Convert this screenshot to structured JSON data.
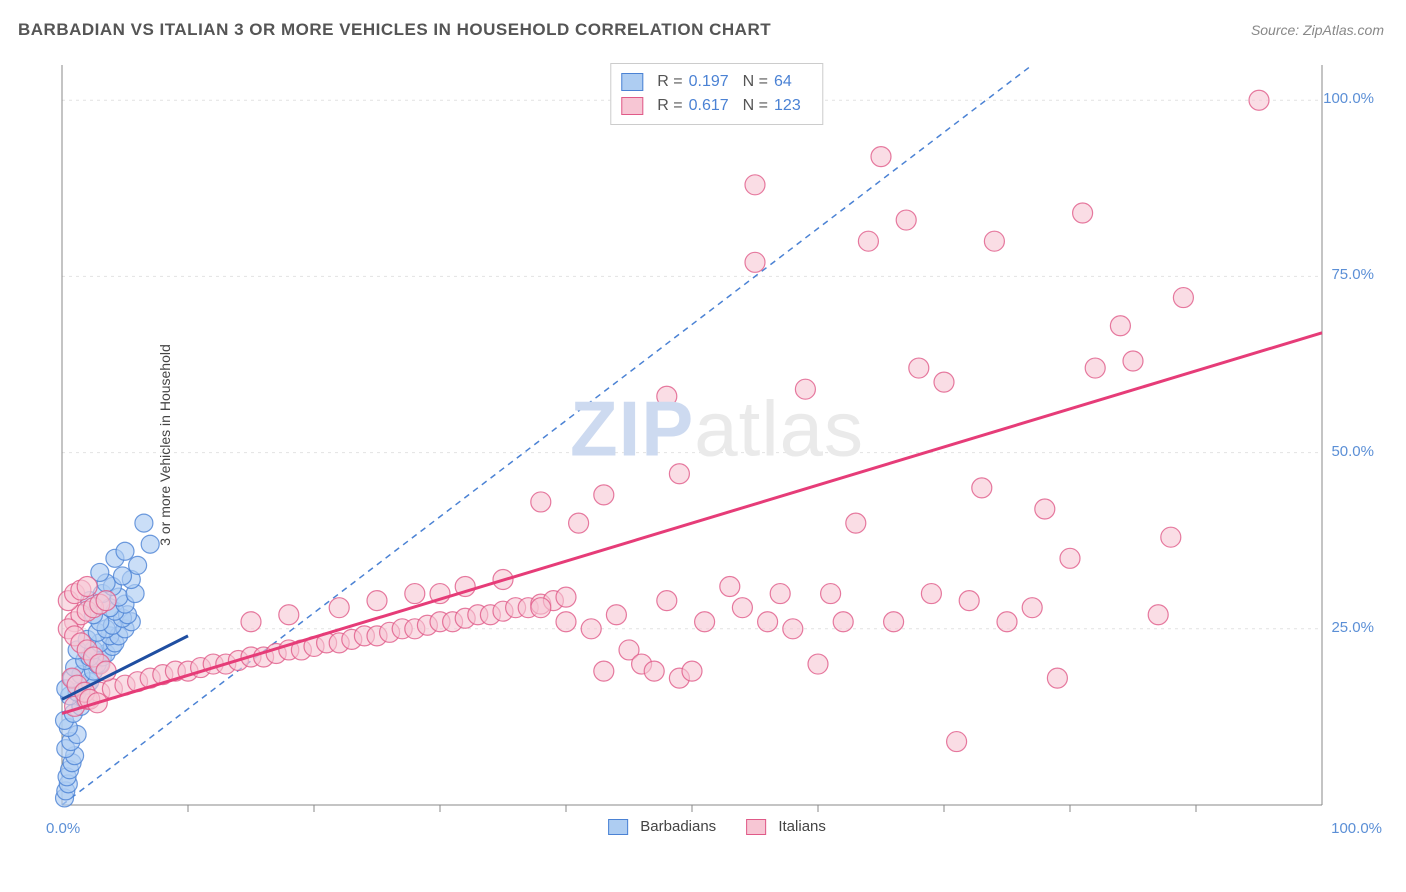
{
  "title": "BARBADIAN VS ITALIAN 3 OR MORE VEHICLES IN HOUSEHOLD CORRELATION CHART",
  "source": "Source: ZipAtlas.com",
  "watermark_zip": "ZIP",
  "watermark_atlas": "atlas",
  "y_axis_label": "3 or more Vehicles in Household",
  "chart": {
    "type": "scatter",
    "xlim": [
      0,
      100
    ],
    "ylim": [
      0,
      105
    ],
    "y_ticks": [
      25,
      50,
      75,
      100
    ],
    "y_tick_labels": [
      "25.0%",
      "50.0%",
      "75.0%",
      "100.0%"
    ],
    "x_tick_labels": {
      "left": "0.0%",
      "right": "100.0%"
    },
    "x_minor_ticks": [
      10,
      20,
      30,
      40,
      50,
      60,
      70,
      80,
      90
    ],
    "grid_color": "#e2e2e2",
    "axis_color": "#888",
    "background_color": "#ffffff",
    "reference_line": {
      "color": "#4b82d4",
      "dash": "6,5",
      "x1": 0,
      "y1": 0,
      "x2": 77,
      "y2": 105
    },
    "series": [
      {
        "name": "Barbadians",
        "marker_color_fill": "#aecdf2",
        "marker_color_stroke": "#4b82d4",
        "marker_radius": 9,
        "marker_opacity": 0.65,
        "trend": {
          "color": "#1f4ea1",
          "width": 3,
          "x1": 0,
          "y1": 15,
          "x2": 10,
          "y2": 24
        },
        "legend_r_label": "R = ",
        "legend_r_value": "0.197",
        "legend_n_label": "N = ",
        "legend_n_value": " 64",
        "points": [
          [
            0.2,
            1
          ],
          [
            0.3,
            2
          ],
          [
            0.5,
            3
          ],
          [
            0.4,
            4
          ],
          [
            0.6,
            5
          ],
          [
            0.8,
            6
          ],
          [
            1,
            7
          ],
          [
            0.3,
            8
          ],
          [
            0.7,
            9
          ],
          [
            1.2,
            10
          ],
          [
            0.5,
            11
          ],
          [
            0.2,
            12
          ],
          [
            0.9,
            13
          ],
          [
            1.5,
            14
          ],
          [
            1.8,
            15
          ],
          [
            0.6,
            15.5
          ],
          [
            1.2,
            16
          ],
          [
            0.3,
            16.5
          ],
          [
            2,
            17
          ],
          [
            2.2,
            17.5
          ],
          [
            0.8,
            18
          ],
          [
            1.5,
            18.5
          ],
          [
            2.5,
            19
          ],
          [
            1,
            19.5
          ],
          [
            3,
            20
          ],
          [
            2.8,
            20
          ],
          [
            1.8,
            20.5
          ],
          [
            3.2,
            21
          ],
          [
            2.2,
            21
          ],
          [
            3.5,
            21.5
          ],
          [
            1.2,
            22
          ],
          [
            2.5,
            22
          ],
          [
            4,
            22.5
          ],
          [
            3,
            23
          ],
          [
            4.2,
            23
          ],
          [
            2,
            23.5
          ],
          [
            3.8,
            24
          ],
          [
            4.5,
            24
          ],
          [
            2.8,
            24.5
          ],
          [
            5,
            25
          ],
          [
            3.5,
            25
          ],
          [
            4,
            25.5
          ],
          [
            5.5,
            26
          ],
          [
            3,
            26
          ],
          [
            4.8,
            26.5
          ],
          [
            2.5,
            27
          ],
          [
            5.2,
            27
          ],
          [
            4.2,
            27.5
          ],
          [
            3.8,
            28
          ],
          [
            5,
            28.5
          ],
          [
            2.2,
            29
          ],
          [
            4.5,
            29.5
          ],
          [
            3.2,
            30
          ],
          [
            5.8,
            30
          ],
          [
            4,
            31
          ],
          [
            3.5,
            31.5
          ],
          [
            5.5,
            32
          ],
          [
            4.8,
            32.5
          ],
          [
            3,
            33
          ],
          [
            6,
            34
          ],
          [
            4.2,
            35
          ],
          [
            5,
            36
          ],
          [
            7,
            37
          ],
          [
            6.5,
            40
          ]
        ]
      },
      {
        "name": "Italians",
        "marker_color_fill": "#f7c6d4",
        "marker_color_stroke": "#e05a88",
        "marker_radius": 10,
        "marker_opacity": 0.6,
        "trend": {
          "color": "#e63c78",
          "width": 3,
          "x1": 0,
          "y1": 13,
          "x2": 100,
          "y2": 67
        },
        "legend_r_label": "R = ",
        "legend_r_value": "0.617",
        "legend_n_label": "N = ",
        "legend_n_value": "123",
        "points": [
          [
            1,
            14
          ],
          [
            2,
            15
          ],
          [
            3,
            16
          ],
          [
            4,
            16.5
          ],
          [
            5,
            17
          ],
          [
            6,
            17.5
          ],
          [
            7,
            18
          ],
          [
            8,
            18.5
          ],
          [
            9,
            19
          ],
          [
            10,
            19
          ],
          [
            11,
            19.5
          ],
          [
            12,
            20
          ],
          [
            13,
            20
          ],
          [
            14,
            20.5
          ],
          [
            15,
            21
          ],
          [
            16,
            21
          ],
          [
            17,
            21.5
          ],
          [
            18,
            22
          ],
          [
            19,
            22
          ],
          [
            20,
            22.5
          ],
          [
            21,
            23
          ],
          [
            22,
            23
          ],
          [
            23,
            23.5
          ],
          [
            24,
            24
          ],
          [
            25,
            24
          ],
          [
            26,
            24.5
          ],
          [
            27,
            25
          ],
          [
            28,
            25
          ],
          [
            29,
            25.5
          ],
          [
            30,
            26
          ],
          [
            31,
            26
          ],
          [
            32,
            26.5
          ],
          [
            33,
            27
          ],
          [
            34,
            27
          ],
          [
            35,
            27.5
          ],
          [
            36,
            28
          ],
          [
            37,
            28
          ],
          [
            38,
            28.5
          ],
          [
            39,
            29
          ],
          [
            40,
            29.5
          ],
          [
            15,
            26
          ],
          [
            18,
            27
          ],
          [
            22,
            28
          ],
          [
            25,
            29
          ],
          [
            28,
            30
          ],
          [
            30,
            30
          ],
          [
            32,
            31
          ],
          [
            35,
            32
          ],
          [
            38,
            28
          ],
          [
            40,
            26
          ],
          [
            42,
            25
          ],
          [
            43,
            19
          ],
          [
            44,
            27
          ],
          [
            45,
            22
          ],
          [
            46,
            20
          ],
          [
            47,
            19
          ],
          [
            48,
            29
          ],
          [
            49,
            18
          ],
          [
            50,
            19
          ],
          [
            51,
            26
          ],
          [
            41,
            40
          ],
          [
            43,
            44
          ],
          [
            48,
            58
          ],
          [
            49,
            47
          ],
          [
            53,
            31
          ],
          [
            54,
            28
          ],
          [
            55,
            77
          ],
          [
            56,
            26
          ],
          [
            57,
            30
          ],
          [
            58,
            25
          ],
          [
            55,
            88
          ],
          [
            59,
            59
          ],
          [
            60,
            20
          ],
          [
            61,
            30
          ],
          [
            62,
            26
          ],
          [
            63,
            40
          ],
          [
            64,
            80
          ],
          [
            65,
            92
          ],
          [
            66,
            26
          ],
          [
            67,
            83
          ],
          [
            68,
            62
          ],
          [
            69,
            30
          ],
          [
            70,
            60
          ],
          [
            71,
            9
          ],
          [
            72,
            29
          ],
          [
            73,
            45
          ],
          [
            74,
            80
          ],
          [
            75,
            26
          ],
          [
            77,
            28
          ],
          [
            78,
            42
          ],
          [
            79,
            18
          ],
          [
            80,
            35
          ],
          [
            81,
            84
          ],
          [
            82,
            62
          ],
          [
            84,
            68
          ],
          [
            85,
            63
          ],
          [
            87,
            27
          ],
          [
            88,
            38
          ],
          [
            89,
            72
          ],
          [
            95,
            100
          ],
          [
            1,
            26
          ],
          [
            1.5,
            27
          ],
          [
            2,
            27.5
          ],
          [
            2.5,
            28
          ],
          [
            3,
            28.5
          ],
          [
            3.5,
            29
          ],
          [
            0.5,
            25
          ],
          [
            1,
            24
          ],
          [
            1.5,
            23
          ],
          [
            2,
            22
          ],
          [
            2.5,
            21
          ],
          [
            3,
            20
          ],
          [
            3.5,
            19
          ],
          [
            0.8,
            18
          ],
          [
            1.2,
            17
          ],
          [
            1.8,
            16
          ],
          [
            2.2,
            15
          ],
          [
            2.8,
            14.5
          ],
          [
            0.5,
            29
          ],
          [
            1,
            30
          ],
          [
            1.5,
            30.5
          ],
          [
            2,
            31
          ],
          [
            38,
            43
          ]
        ]
      }
    ]
  },
  "bottom_legend": [
    {
      "label": "Barbadians",
      "fill": "#aecdf2",
      "stroke": "#4b82d4"
    },
    {
      "label": "Italians",
      "fill": "#f7c6d4",
      "stroke": "#e05a88"
    }
  ]
}
